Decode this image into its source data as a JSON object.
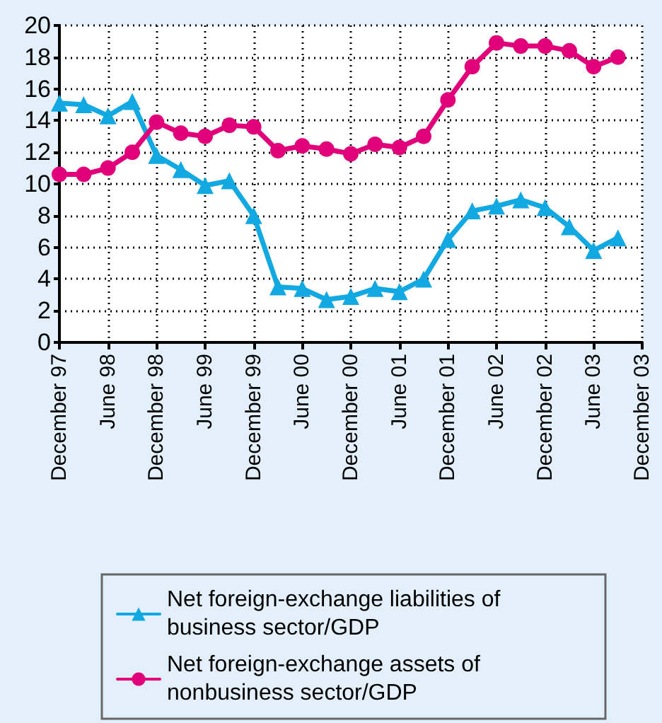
{
  "chart_data": {
    "type": "line",
    "categories": [
      "December 97",
      null,
      "June 98",
      null,
      "December 98",
      null,
      "June 99",
      null,
      "December 99",
      null,
      "June 00",
      null,
      "December 00",
      null,
      "June 01",
      null,
      "December 01",
      null,
      "June 02",
      null,
      "December 02",
      null,
      "June 03",
      null,
      "December 03"
    ],
    "series": [
      {
        "name": "Net foreign-exchange liabilities of business sector/GDP",
        "color": "#12a9e2",
        "marker": "triangle",
        "values": [
          15.1,
          15.0,
          14.3,
          15.2,
          11.8,
          10.9,
          9.9,
          10.2,
          8.0,
          3.5,
          3.4,
          2.7,
          2.9,
          3.4,
          3.2,
          4.0,
          6.5,
          8.3,
          8.6,
          9.0,
          8.5,
          7.3,
          5.8,
          6.6,
          null
        ]
      },
      {
        "name": "Net foreign-exchange assets of nonbusiness sector/GDP",
        "color": "#e2007a",
        "marker": "circle",
        "values": [
          10.6,
          10.6,
          11.0,
          12.0,
          13.9,
          13.2,
          13.0,
          13.7,
          13.6,
          12.1,
          12.4,
          12.2,
          11.9,
          12.5,
          12.3,
          13.0,
          15.3,
          17.4,
          18.9,
          18.7,
          18.7,
          18.4,
          17.4,
          18.0,
          null
        ]
      }
    ],
    "ylim": [
      0,
      20
    ],
    "yticks": [
      0,
      2,
      4,
      6,
      8,
      10,
      12,
      14,
      16,
      18,
      20
    ],
    "grid": true,
    "legend": "bottom",
    "line_style": "solid"
  }
}
